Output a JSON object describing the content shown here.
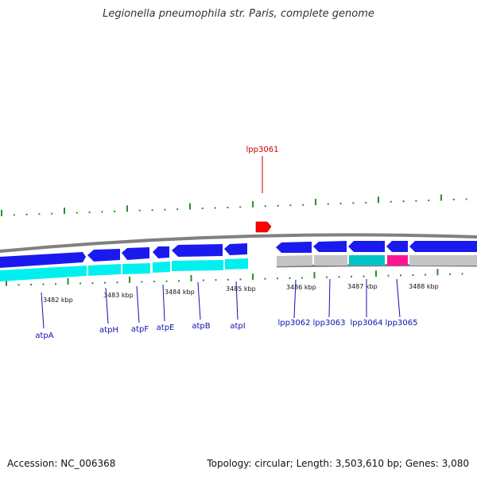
{
  "title": "Legionella pneumophila str. Paris, complete genome",
  "footer": {
    "accession": "Accession: NC_006368",
    "topology": "Topology: circular; Length: 3,503,610 bp; Genes: 3,080"
  },
  "highlight_gene": {
    "name": "lpp3061",
    "color": "#cc0000",
    "marker_color": "#ff0000"
  },
  "colors": {
    "gene_arrow": "#1a1aee",
    "gene_arrow_dark": "#0a0a9a",
    "track_cyan": "#00f0f0",
    "track_teal": "#00c4c4",
    "track_gray": "#c4c4c4",
    "track_magenta": "#ff1493",
    "backbone": "#808080",
    "tick": "#2e8b2e",
    "label": "#1010b0"
  },
  "kbp_labels": [
    "3482 kbp",
    "3483 kbp",
    "3484 kbp",
    "3485 kbp",
    "3486 kbp",
    "3487 kbp",
    "3488 kbp"
  ],
  "genes_left": [
    {
      "name": "atpA",
      "direction": "forward"
    },
    {
      "name": "atpH",
      "direction": "reverse"
    },
    {
      "name": "atpF",
      "direction": "reverse"
    },
    {
      "name": "atpE",
      "direction": "reverse"
    },
    {
      "name": "atpB",
      "direction": "reverse"
    },
    {
      "name": "atpI",
      "direction": "reverse"
    }
  ],
  "genes_right": [
    {
      "name": "lpp3062",
      "direction": "reverse",
      "track": "gray"
    },
    {
      "name": "lpp3063",
      "direction": "reverse",
      "track": "gray"
    },
    {
      "name": "lpp3064",
      "direction": "reverse",
      "track": "teal"
    },
    {
      "name": "lpp3065",
      "direction": "reverse",
      "track": "magenta"
    }
  ]
}
